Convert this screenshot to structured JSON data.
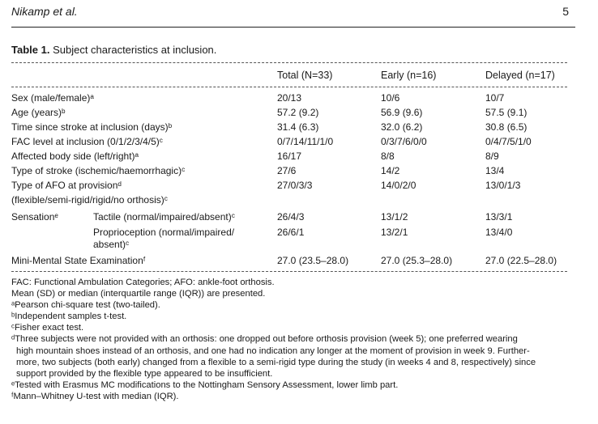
{
  "page": {
    "author": "Nikamp et al.",
    "page_number": "5"
  },
  "table": {
    "label": "Table 1.",
    "caption": "Subject characteristics at inclusion.",
    "headers": [
      "",
      "Total (N=33)",
      "Early (n=16)",
      "Delayed (n=17)"
    ],
    "rows": [
      {
        "label": "Sex (male/female)ᵃ",
        "total": "20/13",
        "early": "10/6",
        "delayed": "10/7"
      },
      {
        "label": "Age (years)ᵇ",
        "total": "57.2 (9.2)",
        "early": "56.9 (9.6)",
        "delayed": "57.5 (9.1)"
      },
      {
        "label": "Time since stroke at inclusion (days)ᵇ",
        "total": "31.4 (6.3)",
        "early": "32.0 (6.2)",
        "delayed": "30.8 (6.5)"
      },
      {
        "label": "FAC level at inclusion (0/1/2/3/4/5)ᶜ",
        "total": "0/7/14/11/1/0",
        "early": "0/3/7/6/0/0",
        "delayed": "0/4/7/5/1/0"
      },
      {
        "label": "Affected body side (left/right)ᵃ",
        "total": "16/17",
        "early": "8/8",
        "delayed": "8/9"
      },
      {
        "label": "Type of stroke (ischemic/haemorrhagic)ᶜ",
        "total": "27/6",
        "early": "14/2",
        "delayed": "13/4"
      },
      {
        "label": "Type of AFO at provisionᵈ",
        "label2": "(flexible/semi-rigid/rigid/no orthosis)ᶜ",
        "total": "27/0/3/3",
        "early": "14/0/2/0",
        "delayed": "13/0/1/3"
      },
      {
        "label": "Sensationᵉ",
        "sub": "Tactile (normal/impaired/absent)ᶜ",
        "total": "26/4/3",
        "early": "13/1/2",
        "delayed": "13/3/1"
      },
      {
        "sub": "Proprioception (normal/impaired/",
        "sub2": "absent)ᶜ",
        "total": "26/6/1",
        "early": "13/2/1",
        "delayed": "13/4/0"
      },
      {
        "label": "Mini-Mental State Examinationᶠ",
        "total": "27.0 (23.5–28.0)",
        "early": "27.0 (25.3–28.0)",
        "delayed": "27.0 (22.5–28.0)"
      }
    ]
  },
  "footnotes": [
    "FAC: Functional Ambulation Categories; AFO: ankle-foot orthosis.",
    "Mean (SD) or median (interquartile range (IQR)) are presented.",
    "ᵃPearson chi-square test (two-tailed).",
    "ᵇIndependent samples t-test.",
    "ᶜFisher exact test.",
    "ᵈThree subjects were not provided with an orthosis: one dropped out before orthosis provision (week 5); one preferred wearing",
    "high mountain shoes instead of an orthosis, and one had no indication any longer at the moment of provision in week 9. Further-",
    "more, two subjects (both early) changed from a flexible to a semi-rigid type during the study (in weeks 4 and 8, respectively) since",
    "support provided by the flexible type appeared to be insufficient.",
    "ᵉTested with Erasmus MC modifications to the Nottingham Sensory Assessment, lower limb part.",
    "ᶠMann–Whitney U-test with median (IQR)."
  ]
}
